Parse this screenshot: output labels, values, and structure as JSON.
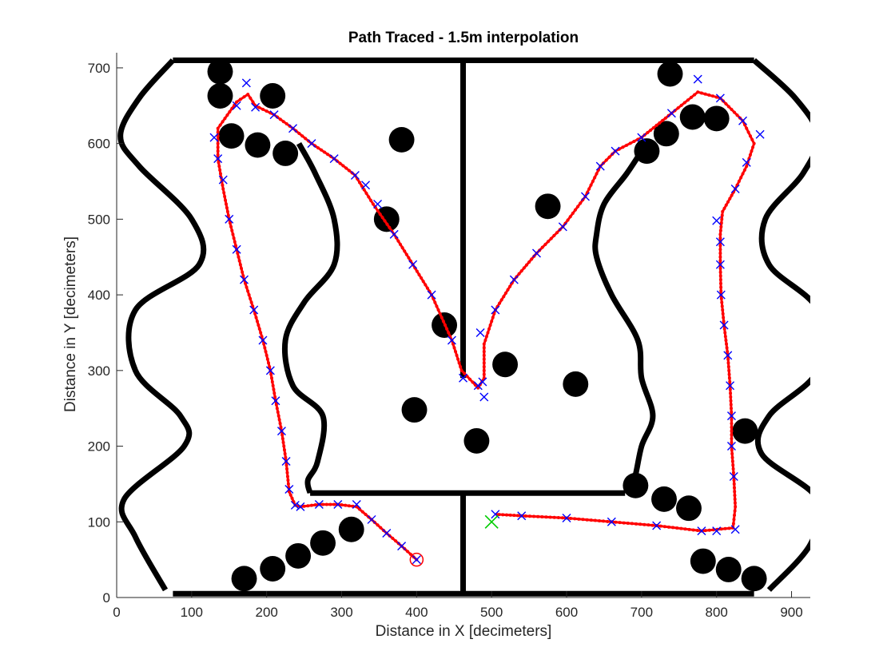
{
  "chart_data": {
    "type": "scatter",
    "title": "Path Traced - 1.5m interpolation",
    "xlabel": "Distance in X [decimeters]",
    "ylabel": "Distance in Y [decimeters]",
    "xlim": [
      0,
      925
    ],
    "ylim": [
      0,
      720
    ],
    "xticks": [
      0,
      100,
      200,
      300,
      400,
      500,
      600,
      700,
      800,
      900
    ],
    "yticks": [
      0,
      100,
      200,
      300,
      400,
      500,
      600,
      700
    ],
    "grid": false,
    "legend": "none",
    "colors": {
      "walls": "#000000",
      "obstacles": "#000000",
      "waypoints": "#0000ff",
      "path": "#ff0000",
      "start": "#ff0000",
      "goal": "#00cc00"
    },
    "walls": {
      "top": [
        [
          75,
          710
        ],
        [
          850,
          710
        ]
      ],
      "bottom": [
        [
          75,
          5
        ],
        [
          850,
          5
        ]
      ],
      "divider_upper": [
        [
          462,
          710
        ],
        [
          462,
          290
        ]
      ],
      "divider_lower": [
        [
          462,
          135
        ],
        [
          462,
          5
        ]
      ],
      "inner_bottom": [
        [
          258,
          138
        ],
        [
          678,
          138
        ]
      ],
      "outer_left": [
        [
          75,
          710
        ],
        [
          30,
          660
        ],
        [
          5,
          610
        ],
        [
          30,
          570
        ],
        [
          100,
          500
        ],
        [
          110,
          440
        ],
        [
          25,
          380
        ],
        [
          25,
          300
        ],
        [
          85,
          240
        ],
        [
          90,
          200
        ],
        [
          10,
          130
        ],
        [
          25,
          80
        ],
        [
          65,
          10
        ]
      ],
      "outer_right": [
        [
          850,
          710
        ],
        [
          905,
          660
        ],
        [
          935,
          610
        ],
        [
          915,
          560
        ],
        [
          865,
          500
        ],
        [
          870,
          440
        ],
        [
          935,
          380
        ],
        [
          935,
          300
        ],
        [
          870,
          240
        ],
        [
          860,
          190
        ],
        [
          935,
          130
        ],
        [
          925,
          70
        ],
        [
          870,
          10
        ]
      ],
      "inner_left_island": [
        [
          243,
          600
        ],
        [
          265,
          560
        ],
        [
          290,
          500
        ],
        [
          290,
          440
        ],
        [
          250,
          390
        ],
        [
          225,
          340
        ],
        [
          235,
          280
        ],
        [
          275,
          240
        ],
        [
          268,
          180
        ],
        [
          255,
          155
        ],
        [
          258,
          138
        ]
      ],
      "inner_right_island": [
        [
          678,
          138
        ],
        [
          690,
          155
        ],
        [
          700,
          200
        ],
        [
          715,
          240
        ],
        [
          700,
          290
        ],
        [
          695,
          340
        ],
        [
          660,
          400
        ],
        [
          640,
          450
        ],
        [
          640,
          480
        ],
        [
          650,
          520
        ],
        [
          680,
          560
        ],
        [
          700,
          590
        ]
      ]
    },
    "obstacles": [
      [
        138,
        695
      ],
      [
        138,
        663
      ],
      [
        208,
        663
      ],
      [
        153,
        610
      ],
      [
        188,
        598
      ],
      [
        225,
        587
      ],
      [
        380,
        605
      ],
      [
        360,
        500
      ],
      [
        437,
        360
      ],
      [
        397,
        248
      ],
      [
        480,
        207
      ],
      [
        518,
        308
      ],
      [
        575,
        517
      ],
      [
        612,
        282
      ],
      [
        738,
        692
      ],
      [
        707,
        590
      ],
      [
        733,
        613
      ],
      [
        768,
        635
      ],
      [
        800,
        633
      ],
      [
        692,
        148
      ],
      [
        730,
        130
      ],
      [
        763,
        118
      ],
      [
        838,
        220
      ],
      [
        782,
        48
      ],
      [
        816,
        37
      ],
      [
        850,
        25
      ],
      [
        170,
        25
      ],
      [
        208,
        38
      ],
      [
        242,
        55
      ],
      [
        275,
        72
      ],
      [
        313,
        90
      ]
    ],
    "obstacle_radius": 17,
    "path": [
      [
        400,
        50
      ],
      [
        380,
        68
      ],
      [
        360,
        85
      ],
      [
        340,
        103
      ],
      [
        320,
        120
      ],
      [
        295,
        123
      ],
      [
        270,
        123
      ],
      [
        245,
        120
      ],
      [
        238,
        122
      ],
      [
        230,
        140
      ],
      [
        226,
        180
      ],
      [
        220,
        220
      ],
      [
        212,
        260
      ],
      [
        205,
        300
      ],
      [
        195,
        340
      ],
      [
        183,
        380
      ],
      [
        170,
        420
      ],
      [
        160,
        460
      ],
      [
        150,
        500
      ],
      [
        142,
        540
      ],
      [
        135,
        580
      ],
      [
        135,
        620
      ],
      [
        160,
        655
      ],
      [
        175,
        665
      ],
      [
        185,
        650
      ],
      [
        210,
        638
      ],
      [
        235,
        620
      ],
      [
        260,
        600
      ],
      [
        290,
        580
      ],
      [
        318,
        558
      ],
      [
        342,
        520
      ],
      [
        370,
        480
      ],
      [
        395,
        440
      ],
      [
        420,
        400
      ],
      [
        447,
        340
      ],
      [
        460,
        300
      ],
      [
        482,
        277
      ],
      [
        490,
        290
      ],
      [
        490,
        335
      ],
      [
        505,
        380
      ],
      [
        530,
        420
      ],
      [
        560,
        455
      ],
      [
        595,
        490
      ],
      [
        625,
        530
      ],
      [
        645,
        570
      ],
      [
        665,
        590
      ],
      [
        700,
        608
      ],
      [
        740,
        640
      ],
      [
        775,
        668
      ],
      [
        805,
        660
      ],
      [
        835,
        630
      ],
      [
        850,
        600
      ],
      [
        840,
        570
      ],
      [
        825,
        540
      ],
      [
        808,
        510
      ],
      [
        805,
        480
      ],
      [
        805,
        440
      ],
      [
        806,
        400
      ],
      [
        810,
        360
      ],
      [
        815,
        320
      ],
      [
        818,
        280
      ],
      [
        820,
        240
      ],
      [
        820,
        200
      ],
      [
        823,
        160
      ],
      [
        825,
        120
      ],
      [
        822,
        92
      ],
      [
        780,
        88
      ],
      [
        720,
        95
      ],
      [
        660,
        100
      ],
      [
        600,
        105
      ],
      [
        540,
        108
      ],
      [
        505,
        110
      ]
    ],
    "waypoints": [
      [
        400,
        50
      ],
      [
        380,
        68
      ],
      [
        360,
        85
      ],
      [
        340,
        103
      ],
      [
        320,
        123
      ],
      [
        295,
        123
      ],
      [
        270,
        123
      ],
      [
        245,
        120
      ],
      [
        238,
        122
      ],
      [
        230,
        143
      ],
      [
        226,
        180
      ],
      [
        220,
        220
      ],
      [
        212,
        260
      ],
      [
        205,
        300
      ],
      [
        195,
        340
      ],
      [
        183,
        380
      ],
      [
        170,
        420
      ],
      [
        160,
        460
      ],
      [
        150,
        500
      ],
      [
        142,
        552
      ],
      [
        135,
        580
      ],
      [
        130,
        608
      ],
      [
        160,
        650
      ],
      [
        173,
        680
      ],
      [
        185,
        648
      ],
      [
        210,
        638
      ],
      [
        235,
        620
      ],
      [
        260,
        600
      ],
      [
        290,
        580
      ],
      [
        318,
        558
      ],
      [
        332,
        545
      ],
      [
        348,
        520
      ],
      [
        370,
        480
      ],
      [
        395,
        440
      ],
      [
        420,
        400
      ],
      [
        447,
        340
      ],
      [
        462,
        290
      ],
      [
        482,
        280
      ],
      [
        490,
        265
      ],
      [
        488,
        285
      ],
      [
        485,
        350
      ],
      [
        505,
        380
      ],
      [
        530,
        420
      ],
      [
        560,
        455
      ],
      [
        595,
        490
      ],
      [
        625,
        530
      ],
      [
        645,
        570
      ],
      [
        665,
        590
      ],
      [
        700,
        608
      ],
      [
        740,
        640
      ],
      [
        775,
        685
      ],
      [
        805,
        660
      ],
      [
        835,
        630
      ],
      [
        858,
        612
      ],
      [
        840,
        575
      ],
      [
        825,
        540
      ],
      [
        800,
        498
      ],
      [
        805,
        470
      ],
      [
        805,
        440
      ],
      [
        806,
        400
      ],
      [
        810,
        360
      ],
      [
        815,
        320
      ],
      [
        818,
        280
      ],
      [
        820,
        240
      ],
      [
        820,
        200
      ],
      [
        823,
        160
      ],
      [
        825,
        90
      ],
      [
        800,
        88
      ],
      [
        780,
        88
      ],
      [
        720,
        95
      ],
      [
        660,
        100
      ],
      [
        600,
        105
      ],
      [
        540,
        108
      ],
      [
        505,
        110
      ]
    ],
    "start": [
      400,
      50
    ],
    "goal": [
      500,
      100
    ]
  }
}
